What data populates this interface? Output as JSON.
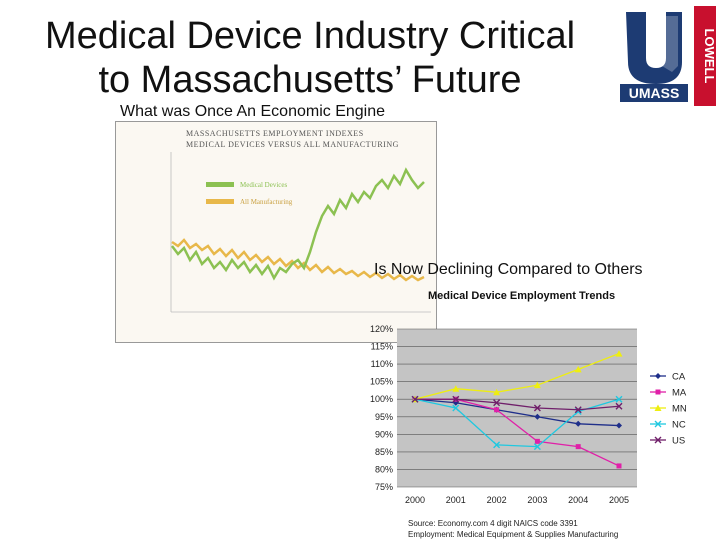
{
  "slide": {
    "title_line1": "Medical Device Industry Critical",
    "title_line2": "to Massachusetts’ Future",
    "subtitle1": "What was Once An Economic Engine",
    "subtitle2": "Is Now Declining Compared to Others",
    "logo": {
      "text": "UMASS",
      "side_text": "LOWELL",
      "colors": {
        "bg": "#1d3b73",
        "red": "#c8102e"
      }
    },
    "image_chart": {
      "title_line1": "MASSACHUSETTS EMPLOYMENT INDEXES",
      "title_line2": "MEDICAL DEVICES VERSUS ALL MANUFACTURING",
      "legend": [
        "Medical Devices",
        "All Manufacturing"
      ],
      "colors": {
        "medical": "#8cc152",
        "manufacturing": "#e8b84a"
      }
    },
    "chart_title": "Medical Device Employment Trends",
    "source_line1": "Source: Economy.com 4 digit NAICS code 3391",
    "source_line2": "Employment: Medical Equipment & Supplies Manufacturing"
  },
  "chart_data": {
    "type": "line",
    "title": "Medical Device Employment Trends",
    "categories": [
      "2000",
      "2001",
      "2002",
      "2003",
      "2004",
      "2005"
    ],
    "ylim": [
      75,
      120
    ],
    "y_ticks": [
      "120%",
      "115%",
      "110%",
      "105%",
      "100%",
      "95%",
      "90%",
      "85%",
      "80%",
      "75%"
    ],
    "grid": true,
    "legend_position": "right",
    "series": [
      {
        "name": "CA",
        "color": "#1f2f8a",
        "marker": "diamond",
        "values": [
          100,
          99,
          97,
          95,
          93,
          92.5
        ]
      },
      {
        "name": "MA",
        "color": "#e020a8",
        "marker": "square",
        "values": [
          100,
          100,
          97,
          88,
          86.5,
          81
        ]
      },
      {
        "name": "MN",
        "color": "#eeee10",
        "marker": "triangle",
        "values": [
          100,
          103,
          102,
          104,
          108.5,
          113
        ]
      },
      {
        "name": "NC",
        "color": "#20c8e0",
        "marker": "x",
        "values": [
          100,
          97.5,
          87,
          86.5,
          96.5,
          100
        ]
      },
      {
        "name": "US",
        "color": "#701f6a",
        "marker": "x",
        "values": [
          100,
          100,
          99,
          97.5,
          97,
          98
        ]
      }
    ]
  }
}
